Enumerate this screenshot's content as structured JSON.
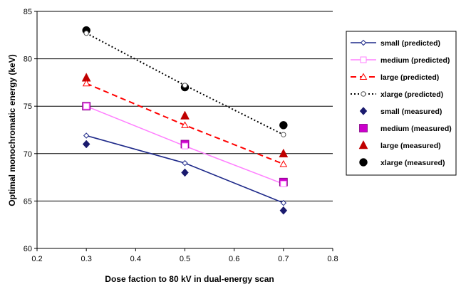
{
  "chart_data": {
    "type": "scatter",
    "xlabel": "Dose faction to 80 kV in dual-energy scan",
    "ylabel": "Optimal monochromatic energy (keV)",
    "xlim": [
      0.2,
      0.8
    ],
    "ylim": [
      60,
      85
    ],
    "xticks": [
      "0.2",
      "0.3",
      "0.4",
      "0.5",
      "0.6",
      "0.7",
      "0.8"
    ],
    "yticks": [
      "60",
      "65",
      "70",
      "75",
      "80",
      "85"
    ],
    "grid": "horizontal",
    "legend_position": "right",
    "series": [
      {
        "name": "small (predicted)",
        "kind": "line",
        "color": "#1f2a8a",
        "dash": "solid",
        "marker": "open-diamond",
        "points": [
          {
            "x": 0.3,
            "y": 71.9
          },
          {
            "x": 0.5,
            "y": 69.0
          },
          {
            "x": 0.7,
            "y": 64.8
          }
        ]
      },
      {
        "name": "medium (predicted)",
        "kind": "line",
        "color": "#ff80ff",
        "dash": "solid",
        "marker": "open-square",
        "points": [
          {
            "x": 0.3,
            "y": 75.0
          },
          {
            "x": 0.5,
            "y": 70.8
          },
          {
            "x": 0.7,
            "y": 66.8
          }
        ]
      },
      {
        "name": "large (predicted)",
        "kind": "line",
        "color": "#ff0000",
        "dash": "dash",
        "marker": "open-triangle",
        "points": [
          {
            "x": 0.3,
            "y": 77.4
          },
          {
            "x": 0.5,
            "y": 73.0
          },
          {
            "x": 0.7,
            "y": 68.9
          }
        ]
      },
      {
        "name": "xlarge (predicted)",
        "kind": "line",
        "color": "#000000",
        "dash": "dot",
        "marker": "open-circle",
        "points": [
          {
            "x": 0.3,
            "y": 82.7
          },
          {
            "x": 0.5,
            "y": 77.2
          },
          {
            "x": 0.7,
            "y": 72.0
          }
        ]
      },
      {
        "name": "small (measured)",
        "kind": "marker",
        "color": "#1a1a6e",
        "marker": "diamond",
        "points": [
          {
            "x": 0.3,
            "y": 71.0
          },
          {
            "x": 0.5,
            "y": 68.0
          },
          {
            "x": 0.7,
            "y": 64.0
          }
        ]
      },
      {
        "name": "medium (measured)",
        "kind": "marker",
        "color": "#cc00cc",
        "marker": "square",
        "points": [
          {
            "x": 0.3,
            "y": 75.0
          },
          {
            "x": 0.5,
            "y": 71.0
          },
          {
            "x": 0.7,
            "y": 67.0
          }
        ]
      },
      {
        "name": "large (measured)",
        "kind": "marker",
        "color": "#c00000",
        "marker": "triangle",
        "points": [
          {
            "x": 0.3,
            "y": 78.0
          },
          {
            "x": 0.5,
            "y": 74.0
          },
          {
            "x": 0.7,
            "y": 70.0
          }
        ]
      },
      {
        "name": "xlarge (measured)",
        "kind": "marker",
        "color": "#000000",
        "marker": "circle",
        "points": [
          {
            "x": 0.3,
            "y": 83.0
          },
          {
            "x": 0.5,
            "y": 77.0
          },
          {
            "x": 0.7,
            "y": 73.0
          }
        ]
      }
    ]
  }
}
